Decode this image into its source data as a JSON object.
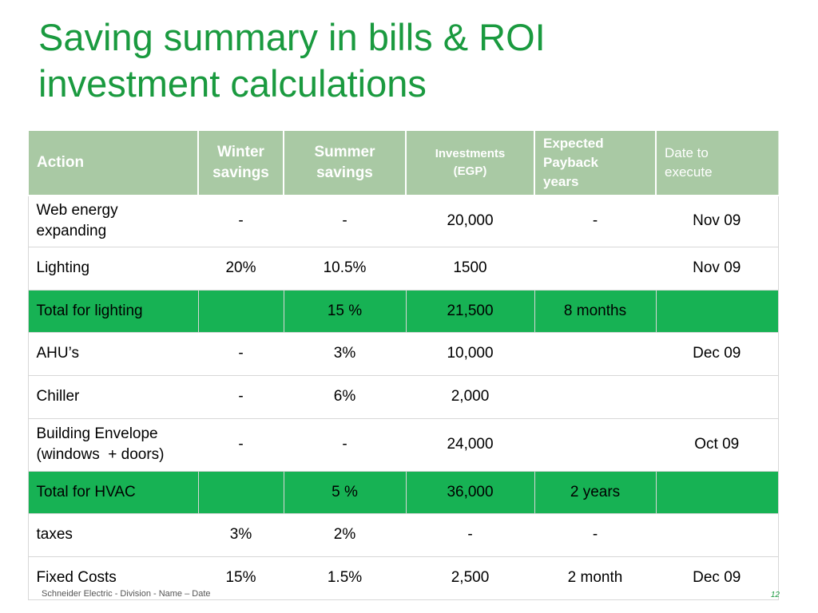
{
  "title": {
    "line1": "Saving summary in bills & ROI",
    "line2": "investment calculations"
  },
  "table": {
    "headers": {
      "action": "Action",
      "winter": [
        "Winter",
        "savings"
      ],
      "summer": [
        "Summer",
        "savings"
      ],
      "investments": [
        "Investments",
        "(EGP)"
      ],
      "payback": [
        "Expected",
        "Payback",
        "years"
      ],
      "date": [
        "Date to",
        "execute"
      ]
    },
    "rows": [
      {
        "action": [
          "Web energy",
          "expanding"
        ],
        "winter": "-",
        "summer": "-",
        "investments": "20,000",
        "payback": "-",
        "date": "Nov 09"
      },
      {
        "action": [
          "Lighting"
        ],
        "winter": "20%",
        "summer": "10.5%",
        "investments": "1500",
        "payback": "",
        "date": "Nov 09"
      },
      {
        "action": [
          "Total for lighting"
        ],
        "winter": "",
        "summer": "15 %",
        "investments": "21,500",
        "payback": "8 months",
        "date": ""
      },
      {
        "action": [
          "AHU’s"
        ],
        "winter": "-",
        "summer": "3%",
        "investments": "10,000",
        "payback": "",
        "date": "Dec 09"
      },
      {
        "action": [
          "Chiller"
        ],
        "winter": "-",
        "summer": "6%",
        "investments": "2,000",
        "payback": "",
        "date": ""
      },
      {
        "action": [
          "Building Envelope",
          "(windows  + doors)"
        ],
        "winter": "-",
        "summer": "-",
        "investments": "24,000",
        "payback": "",
        "date": "Oct 09"
      },
      {
        "action": [
          "Total for HVAC"
        ],
        "winter": "",
        "summer": "5 %",
        "investments": "36,000",
        "payback": "2 years",
        "date": ""
      },
      {
        "action": [
          "taxes"
        ],
        "winter": "3%",
        "summer": "2%",
        "investments": "-",
        "payback": "-",
        "date": ""
      },
      {
        "action": [
          "Fixed Costs"
        ],
        "winter": "15%",
        "summer": "1.5%",
        "investments": "2,500",
        "payback": "2 month",
        "date": "Dec 09"
      }
    ]
  },
  "footer": {
    "text": "Schneider Electric - Division - Name – Date",
    "page": "12"
  },
  "colors": {
    "title": "#1a9a3f",
    "header_bg": "#a9c9a4",
    "total_row_bg": "#17b254"
  }
}
